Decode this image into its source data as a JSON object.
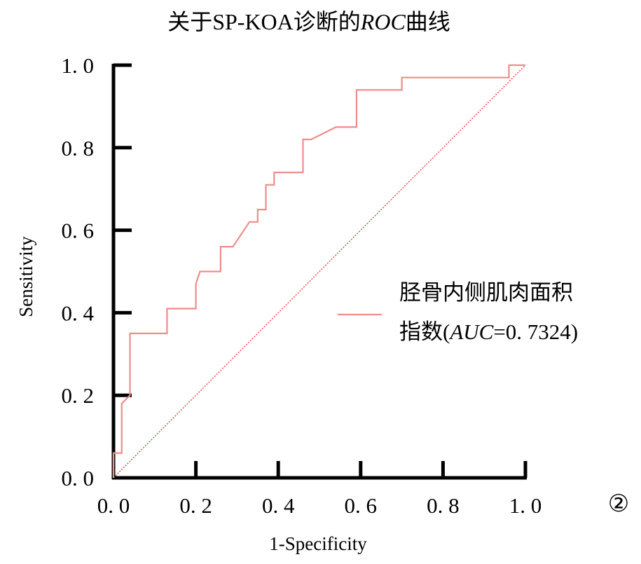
{
  "chart_data": {
    "type": "line",
    "title": "关于SP-KOA诊断的ROC曲线",
    "title_parts": {
      "prefix": "关于SP-KOA诊断的",
      "italic": "ROC",
      "suffix": "曲线"
    },
    "xlabel": "1-Specificity",
    "ylabel": "Sensitivity",
    "xlim": [
      0,
      1
    ],
    "ylim": [
      0,
      1
    ],
    "x_ticks": [
      "0. 0",
      "0. 2",
      "0. 4",
      "0. 6",
      "0. 8",
      "1. 0"
    ],
    "y_ticks": [
      "0. 0",
      "0. 2",
      "0. 4",
      "0. 6",
      "0. 8",
      "1. 0"
    ],
    "grid": false,
    "legend_position": "right",
    "panel_label": "②",
    "series": [
      {
        "name": "胫骨内侧肌肉面积指数(AUC=0. 7324)",
        "name_line1": "胫骨内侧肌肉面积",
        "name_line2_prefix": "指数(",
        "name_line2_italic": "AUC",
        "name_line2_suffix": "=0. 7324)",
        "color": "#f08c8c",
        "x": [
          0.0,
          0.0,
          0.02,
          0.02,
          0.04,
          0.04,
          0.13,
          0.13,
          0.2,
          0.2,
          0.21,
          0.26,
          0.26,
          0.29,
          0.33,
          0.35,
          0.35,
          0.37,
          0.37,
          0.39,
          0.39,
          0.46,
          0.46,
          0.48,
          0.54,
          0.59,
          0.59,
          0.7,
          0.7,
          0.96,
          0.96,
          1.0
        ],
        "y": [
          0.0,
          0.06,
          0.06,
          0.18,
          0.2,
          0.35,
          0.35,
          0.41,
          0.41,
          0.47,
          0.5,
          0.5,
          0.56,
          0.56,
          0.62,
          0.62,
          0.65,
          0.65,
          0.71,
          0.71,
          0.74,
          0.74,
          0.82,
          0.82,
          0.85,
          0.85,
          0.94,
          0.94,
          0.97,
          0.97,
          1.0,
          1.0
        ]
      }
    ],
    "reference_line": {
      "x": [
        0,
        1
      ],
      "y": [
        0,
        1
      ],
      "color": "#f04040"
    }
  },
  "colors": {
    "axis": "#000000",
    "roc": "#f08c8c",
    "reference": "#f04040"
  }
}
